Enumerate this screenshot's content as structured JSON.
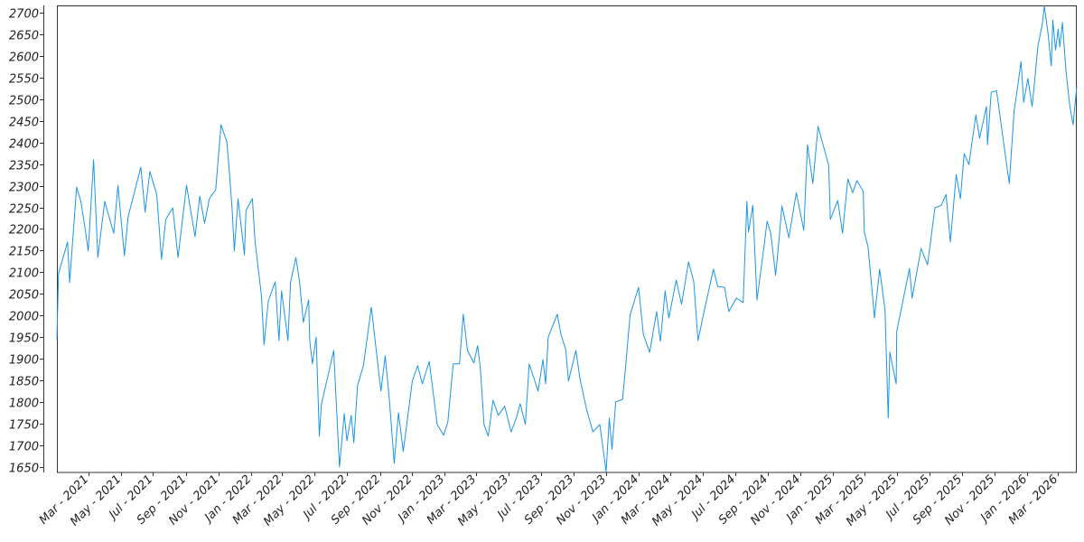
{
  "chart_data": {
    "type": "line",
    "title": "",
    "xlabel": "",
    "ylabel": "",
    "grid": false,
    "line_color": "#1a96e8",
    "ylim": [
      1637,
      2717
    ],
    "xlim": [
      "2021-01-01",
      "2026-04-05"
    ],
    "y_ticks": [
      1650,
      1700,
      1750,
      1800,
      1850,
      1900,
      1950,
      2000,
      2050,
      2100,
      2150,
      2200,
      2250,
      2300,
      2350,
      2400,
      2450,
      2500,
      2550,
      2600,
      2650,
      2700
    ],
    "x_ticks": [
      {
        "date": "2021-03-01",
        "label": "Mar - 2021"
      },
      {
        "date": "2021-05-01",
        "label": "May - 2021"
      },
      {
        "date": "2021-07-01",
        "label": "Jul - 2021"
      },
      {
        "date": "2021-09-01",
        "label": "Sep - 2021"
      },
      {
        "date": "2021-11-01",
        "label": "Nov - 2021"
      },
      {
        "date": "2022-01-01",
        "label": "Jan - 2022"
      },
      {
        "date": "2022-03-01",
        "label": "Mar - 2022"
      },
      {
        "date": "2022-05-01",
        "label": "May - 2022"
      },
      {
        "date": "2022-07-01",
        "label": "Jul - 2022"
      },
      {
        "date": "2022-09-01",
        "label": "Sep - 2022"
      },
      {
        "date": "2022-11-01",
        "label": "Nov - 2022"
      },
      {
        "date": "2023-01-01",
        "label": "Jan - 2023"
      },
      {
        "date": "2023-03-01",
        "label": "Mar - 2023"
      },
      {
        "date": "2023-05-01",
        "label": "May - 2023"
      },
      {
        "date": "2023-07-01",
        "label": "Jul - 2023"
      },
      {
        "date": "2023-09-01",
        "label": "Sep - 2023"
      },
      {
        "date": "2023-11-01",
        "label": "Nov - 2023"
      },
      {
        "date": "2024-01-01",
        "label": "Jan - 2024"
      },
      {
        "date": "2024-03-01",
        "label": "Mar - 2024"
      },
      {
        "date": "2024-05-01",
        "label": "May - 2024"
      },
      {
        "date": "2024-07-01",
        "label": "Jul - 2024"
      },
      {
        "date": "2024-09-01",
        "label": "Sep - 2024"
      },
      {
        "date": "2024-11-01",
        "label": "Nov - 2024"
      },
      {
        "date": "2025-01-01",
        "label": "Jan - 2025"
      },
      {
        "date": "2025-03-01",
        "label": "Mar - 2025"
      },
      {
        "date": "2025-05-01",
        "label": "May - 2025"
      },
      {
        "date": "2025-07-01",
        "label": "Jul - 2025"
      },
      {
        "date": "2025-09-01",
        "label": "Sep - 2025"
      },
      {
        "date": "2025-11-01",
        "label": "Nov - 2025"
      },
      {
        "date": "2026-01-01",
        "label": "Jan - 2026"
      },
      {
        "date": "2026-03-01",
        "label": "Mar - 2026"
      }
    ],
    "series": [
      {
        "points": [
          [
            "2021-01-01",
            1946
          ],
          [
            "2021-01-04",
            2097
          ],
          [
            "2021-01-21",
            2170
          ],
          [
            "2021-01-25",
            2076
          ],
          [
            "2021-02-07",
            2297
          ],
          [
            "2021-02-15",
            2264
          ],
          [
            "2021-02-23",
            2201
          ],
          [
            "2021-03-01",
            2149
          ],
          [
            "2021-03-11",
            2360
          ],
          [
            "2021-03-19",
            2134
          ],
          [
            "2021-04-01",
            2264
          ],
          [
            "2021-04-18",
            2190
          ],
          [
            "2021-04-26",
            2301
          ],
          [
            "2021-05-08",
            2138
          ],
          [
            "2021-05-15",
            2228
          ],
          [
            "2021-06-08",
            2343
          ],
          [
            "2021-06-16",
            2239
          ],
          [
            "2021-06-25",
            2333
          ],
          [
            "2021-07-08",
            2280
          ],
          [
            "2021-07-17",
            2130
          ],
          [
            "2021-07-25",
            2222
          ],
          [
            "2021-08-07",
            2249
          ],
          [
            "2021-08-17",
            2134
          ],
          [
            "2021-09-02",
            2301
          ],
          [
            "2021-09-18",
            2182
          ],
          [
            "2021-09-27",
            2276
          ],
          [
            "2021-10-06",
            2213
          ],
          [
            "2021-10-15",
            2270
          ],
          [
            "2021-10-27",
            2291
          ],
          [
            "2021-11-06",
            2441
          ],
          [
            "2021-11-17",
            2401
          ],
          [
            "2021-11-22",
            2328
          ],
          [
            "2021-11-27",
            2243
          ],
          [
            "2021-12-01",
            2149
          ],
          [
            "2021-12-08",
            2270
          ],
          [
            "2021-12-20",
            2140
          ],
          [
            "2021-12-23",
            2243
          ],
          [
            "2022-01-04",
            2270
          ],
          [
            "2022-01-09",
            2172
          ],
          [
            "2022-01-21",
            2046
          ],
          [
            "2022-01-26",
            1932
          ],
          [
            "2022-02-03",
            2034
          ],
          [
            "2022-02-16",
            2078
          ],
          [
            "2022-02-23",
            1942
          ],
          [
            "2022-02-28",
            2057
          ],
          [
            "2022-03-12",
            1942
          ],
          [
            "2022-03-17",
            2078
          ],
          [
            "2022-03-27",
            2134
          ],
          [
            "2022-04-03",
            2076
          ],
          [
            "2022-04-10",
            1984
          ],
          [
            "2022-04-20",
            2036
          ],
          [
            "2022-04-22",
            1942
          ],
          [
            "2022-04-27",
            1888
          ],
          [
            "2022-05-04",
            1950
          ],
          [
            "2022-05-10",
            1721
          ],
          [
            "2022-05-14",
            1794
          ],
          [
            "2022-06-06",
            1919
          ],
          [
            "2022-06-17",
            1650
          ],
          [
            "2022-06-26",
            1773
          ],
          [
            "2022-07-01",
            1710
          ],
          [
            "2022-07-09",
            1769
          ],
          [
            "2022-07-14",
            1706
          ],
          [
            "2022-07-21",
            1838
          ],
          [
            "2022-08-01",
            1884
          ],
          [
            "2022-08-16",
            2019
          ],
          [
            "2022-08-25",
            1921
          ],
          [
            "2022-09-03",
            1825
          ],
          [
            "2022-09-11",
            1907
          ],
          [
            "2022-09-19",
            1804
          ],
          [
            "2022-09-28",
            1658
          ],
          [
            "2022-10-06",
            1775
          ],
          [
            "2022-10-15",
            1685
          ],
          [
            "2022-11-01",
            1848
          ],
          [
            "2022-11-11",
            1884
          ],
          [
            "2022-11-20",
            1842
          ],
          [
            "2022-12-03",
            1894
          ],
          [
            "2022-12-18",
            1748
          ],
          [
            "2022-12-30",
            1723
          ],
          [
            "2023-01-07",
            1754
          ],
          [
            "2023-01-17",
            1888
          ],
          [
            "2023-01-29",
            1888
          ],
          [
            "2023-02-05",
            2003
          ],
          [
            "2023-02-13",
            1919
          ],
          [
            "2023-02-25",
            1890
          ],
          [
            "2023-03-04",
            1930
          ],
          [
            "2023-03-09",
            1880
          ],
          [
            "2023-03-16",
            1748
          ],
          [
            "2023-03-24",
            1721
          ],
          [
            "2023-04-02",
            1804
          ],
          [
            "2023-04-12",
            1769
          ],
          [
            "2023-04-24",
            1790
          ],
          [
            "2023-05-06",
            1731
          ],
          [
            "2023-05-16",
            1763
          ],
          [
            "2023-05-23",
            1796
          ],
          [
            "2023-06-02",
            1748
          ],
          [
            "2023-06-09",
            1888
          ],
          [
            "2023-06-26",
            1825
          ],
          [
            "2023-07-05",
            1898
          ],
          [
            "2023-07-10",
            1842
          ],
          [
            "2023-07-15",
            1950
          ],
          [
            "2023-08-01",
            2003
          ],
          [
            "2023-08-08",
            1956
          ],
          [
            "2023-08-17",
            1921
          ],
          [
            "2023-08-22",
            1848
          ],
          [
            "2023-09-05",
            1919
          ],
          [
            "2023-09-13",
            1852
          ],
          [
            "2023-09-25",
            1783
          ],
          [
            "2023-10-07",
            1731
          ],
          [
            "2023-10-20",
            1748
          ],
          [
            "2023-11-01",
            1639
          ],
          [
            "2023-11-07",
            1763
          ],
          [
            "2023-11-12",
            1690
          ],
          [
            "2023-11-19",
            1800
          ],
          [
            "2023-12-02",
            1806
          ],
          [
            "2023-12-07",
            1873
          ],
          [
            "2023-12-16",
            2001
          ],
          [
            "2024-01-01",
            2065
          ],
          [
            "2024-01-10",
            1956
          ],
          [
            "2024-01-22",
            1915
          ],
          [
            "2024-02-04",
            2009
          ],
          [
            "2024-02-11",
            1940
          ],
          [
            "2024-02-20",
            2057
          ],
          [
            "2024-02-27",
            1994
          ],
          [
            "2024-03-12",
            2082
          ],
          [
            "2024-03-22",
            2026
          ],
          [
            "2024-04-04",
            2124
          ],
          [
            "2024-04-14",
            2078
          ],
          [
            "2024-04-22",
            1942
          ],
          [
            "2024-05-04",
            2013
          ],
          [
            "2024-05-21",
            2107
          ],
          [
            "2024-05-29",
            2067
          ],
          [
            "2024-06-11",
            2065
          ],
          [
            "2024-06-19",
            2009
          ],
          [
            "2024-07-03",
            2040
          ],
          [
            "2024-07-16",
            2030
          ],
          [
            "2024-07-23",
            2264
          ],
          [
            "2024-07-26",
            2193
          ],
          [
            "2024-08-03",
            2255
          ],
          [
            "2024-08-11",
            2036
          ],
          [
            "2024-08-23",
            2149
          ],
          [
            "2024-08-30",
            2218
          ],
          [
            "2024-09-06",
            2190
          ],
          [
            "2024-09-15",
            2093
          ],
          [
            "2024-09-22",
            2182
          ],
          [
            "2024-09-27",
            2253
          ],
          [
            "2024-10-10",
            2180
          ],
          [
            "2024-10-24",
            2284
          ],
          [
            "2024-11-07",
            2197
          ],
          [
            "2024-11-14",
            2395
          ],
          [
            "2024-11-24",
            2305
          ],
          [
            "2024-12-04",
            2437
          ],
          [
            "2024-12-12",
            2401
          ],
          [
            "2024-12-24",
            2347
          ],
          [
            "2024-12-27",
            2222
          ],
          [
            "2025-01-10",
            2266
          ],
          [
            "2025-01-19",
            2190
          ],
          [
            "2025-01-29",
            2316
          ],
          [
            "2025-02-07",
            2284
          ],
          [
            "2025-02-15",
            2312
          ],
          [
            "2025-02-27",
            2287
          ],
          [
            "2025-03-01",
            2193
          ],
          [
            "2025-03-08",
            2159
          ],
          [
            "2025-03-18",
            2026
          ],
          [
            "2025-03-20",
            1994
          ],
          [
            "2025-03-30",
            2107
          ],
          [
            "2025-04-09",
            2013
          ],
          [
            "2025-04-15",
            1763
          ],
          [
            "2025-04-18",
            1915
          ],
          [
            "2025-04-30",
            1842
          ],
          [
            "2025-05-01",
            1963
          ],
          [
            "2025-05-25",
            2109
          ],
          [
            "2025-05-30",
            2040
          ],
          [
            "2025-06-16",
            2155
          ],
          [
            "2025-06-28",
            2117
          ],
          [
            "2025-07-12",
            2249
          ],
          [
            "2025-07-24",
            2255
          ],
          [
            "2025-08-02",
            2280
          ],
          [
            "2025-08-10",
            2170
          ],
          [
            "2025-08-21",
            2326
          ],
          [
            "2025-08-29",
            2270
          ],
          [
            "2025-09-05",
            2374
          ],
          [
            "2025-09-14",
            2349
          ],
          [
            "2025-09-27",
            2464
          ],
          [
            "2025-10-04",
            2410
          ],
          [
            "2025-10-17",
            2483
          ],
          [
            "2025-10-19",
            2395
          ],
          [
            "2025-10-26",
            2516
          ],
          [
            "2025-11-05",
            2520
          ],
          [
            "2025-11-16",
            2420
          ],
          [
            "2025-11-29",
            2305
          ],
          [
            "2025-12-08",
            2472
          ],
          [
            "2025-12-15",
            2531
          ],
          [
            "2025-12-21",
            2587
          ],
          [
            "2025-12-26",
            2493
          ],
          [
            "2026-01-03",
            2548
          ],
          [
            "2026-01-11",
            2483
          ],
          [
            "2026-01-22",
            2625
          ],
          [
            "2026-01-30",
            2673
          ],
          [
            "2026-02-03",
            2715
          ],
          [
            "2026-02-10",
            2652
          ],
          [
            "2026-02-16",
            2577
          ],
          [
            "2026-02-19",
            2683
          ],
          [
            "2026-02-24",
            2614
          ],
          [
            "2026-03-01",
            2662
          ],
          [
            "2026-03-04",
            2621
          ],
          [
            "2026-03-09",
            2677
          ],
          [
            "2026-03-16",
            2562
          ],
          [
            "2026-03-23",
            2483
          ],
          [
            "2026-03-29",
            2441
          ],
          [
            "2026-04-05",
            2531
          ]
        ]
      }
    ]
  }
}
